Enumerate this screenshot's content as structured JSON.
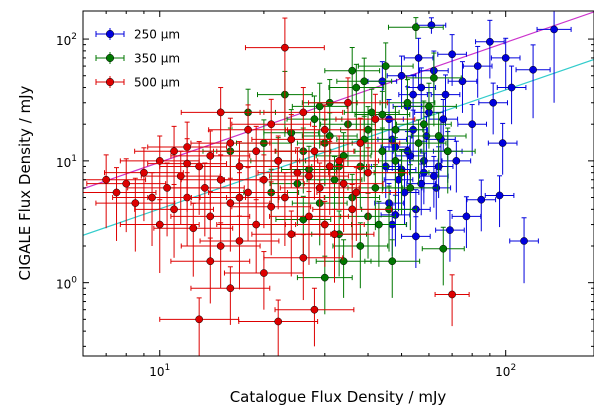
{
  "chart_data": {
    "type": "scatter",
    "title": "",
    "xlabel": "Catalogue Flux Density / mJy",
    "ylabel": "CIGALE Flux Density / mJy",
    "xscale": "log",
    "yscale": "log",
    "xlim": [
      6,
      180
    ],
    "ylim": [
      0.25,
      170
    ],
    "x_ticks": [
      {
        "value": 10,
        "base": "10",
        "exp": "1"
      },
      {
        "value": 100,
        "base": "10",
        "exp": "2"
      }
    ],
    "y_ticks": [
      {
        "value": 1,
        "base": "10",
        "exp": "0"
      },
      {
        "value": 10,
        "base": "10",
        "exp": "1"
      },
      {
        "value": 100,
        "base": "10",
        "exp": "2"
      }
    ],
    "legend_position": "upper-left",
    "grid": false,
    "reference_lines": [
      {
        "color": "#cc33cc",
        "points": [
          [
            6,
            5.9
          ],
          [
            180,
            167
          ]
        ]
      },
      {
        "color": "#33cccc",
        "points": [
          [
            6,
            2.45
          ],
          [
            180,
            68
          ]
        ]
      }
    ],
    "series": [
      {
        "name": "250 µm",
        "color": "#0000dd",
        "points": [
          [
            138,
            120,
            1.12,
            0.75
          ],
          [
            120,
            56,
            1.12,
            0.6
          ],
          [
            113,
            2.2,
            1.1,
            0.55
          ],
          [
            104,
            40,
            1.1,
            0.5
          ],
          [
            100,
            70,
            1.1,
            0.45
          ],
          [
            98,
            14,
            1.1,
            0.45
          ],
          [
            96,
            5.2,
            1.1,
            0.45
          ],
          [
            92,
            30,
            1.1,
            0.45
          ],
          [
            90,
            95,
            1.1,
            0.5
          ],
          [
            85,
            4.8,
            1.1,
            0.45
          ],
          [
            83,
            60,
            1.1,
            0.45
          ],
          [
            80,
            20,
            1.1,
            0.45
          ],
          [
            77,
            3.5,
            1.1,
            0.45
          ],
          [
            75,
            45,
            1.1,
            0.45
          ],
          [
            72,
            10,
            1.1,
            0.45
          ],
          [
            70,
            75,
            1.1,
            0.45
          ],
          [
            69,
            2.7,
            1.1,
            0.45
          ],
          [
            67,
            35,
            1.1,
            0.45
          ],
          [
            65,
            15,
            1.1,
            0.45
          ],
          [
            63,
            6,
            1.1,
            0.45
          ],
          [
            62,
            55,
            1.1,
            0.45
          ],
          [
            61,
            130,
            1.1,
            0.15
          ],
          [
            60,
            25,
            1.1,
            0.45
          ],
          [
            58,
            8,
            1.1,
            0.45
          ],
          [
            57,
            40,
            1.1,
            0.45
          ],
          [
            56,
            70,
            1.1,
            0.45
          ],
          [
            55,
            4,
            1.1,
            0.45
          ],
          [
            54,
            18,
            1.1,
            0.45
          ],
          [
            53,
            11,
            1.1,
            0.45
          ],
          [
            52,
            28,
            1.1,
            0.45
          ],
          [
            51,
            5.5,
            1.1,
            0.45
          ],
          [
            50,
            50,
            1.1,
            0.45
          ],
          [
            49,
            7,
            1.1,
            0.45
          ],
          [
            48,
            13,
            1.1,
            0.45
          ],
          [
            47,
            3,
            1.1,
            0.45
          ],
          [
            46,
            22,
            1.1,
            0.45
          ],
          [
            45,
            9,
            1.1,
            0.45
          ],
          [
            44,
            45,
            1.1,
            0.45
          ],
          [
            68,
            12,
            1.1,
            0.45
          ],
          [
            66,
            22,
            1.1,
            0.45
          ],
          [
            64,
            9,
            1.1,
            0.45
          ],
          [
            59,
            16,
            1.1,
            0.45
          ],
          [
            57,
            6.5,
            1.1,
            0.45
          ],
          [
            54,
            35,
            1.1,
            0.45
          ],
          [
            52,
            12,
            1.1,
            0.45
          ],
          [
            50,
            8.5,
            1.1,
            0.45
          ],
          [
            48,
            3.6,
            1.1,
            0.45
          ],
          [
            47,
            15,
            1.1,
            0.45
          ],
          [
            46,
            4.5,
            1.1,
            0.45
          ],
          [
            58,
            10,
            1.1,
            0.45
          ],
          [
            62,
            7.5,
            1.1,
            0.45
          ],
          [
            55,
            2.4,
            1.1,
            0.45
          ]
        ]
      },
      {
        "name": "350 µm",
        "color": "#007700",
        "points": [
          [
            62,
            48,
            1.2,
            0.6
          ],
          [
            55,
            125,
            1.2,
            0.2
          ],
          [
            52,
            30,
            1.2,
            0.55
          ],
          [
            50,
            8,
            1.2,
            0.55
          ],
          [
            48,
            18,
            1.2,
            0.55
          ],
          [
            46,
            4,
            1.2,
            0.55
          ],
          [
            45,
            60,
            1.2,
            0.55
          ],
          [
            44,
            12,
            1.2,
            0.55
          ],
          [
            42,
            6,
            1.2,
            0.55
          ],
          [
            41,
            25,
            1.2,
            0.55
          ],
          [
            40,
            3.5,
            1.2,
            0.55
          ],
          [
            39,
            15,
            1.2,
            0.55
          ],
          [
            38,
            9,
            1.2,
            0.55
          ],
          [
            37,
            40,
            1.2,
            0.55
          ],
          [
            36,
            5,
            1.2,
            0.55
          ],
          [
            35,
            20,
            1.2,
            0.55
          ],
          [
            34,
            11,
            1.2,
            0.55
          ],
          [
            33,
            2.5,
            1.2,
            0.55
          ],
          [
            32,
            7,
            1.2,
            0.55
          ],
          [
            31,
            30,
            1.2,
            0.55
          ],
          [
            30,
            14,
            1.2,
            0.55
          ],
          [
            29,
            4.5,
            1.2,
            0.55
          ],
          [
            28,
            22,
            1.2,
            0.55
          ],
          [
            27,
            8.5,
            1.2,
            0.55
          ],
          [
            26,
            12,
            1.2,
            0.55
          ],
          [
            25,
            6.5,
            1.2,
            0.55
          ],
          [
            24,
            17,
            1.2,
            0.55
          ],
          [
            23,
            35,
            1.2,
            0.55
          ],
          [
            22,
            10,
            1.2,
            0.55
          ],
          [
            21,
            5.5,
            1.2,
            0.55
          ],
          [
            20,
            14,
            1.2,
            0.55
          ],
          [
            18,
            25,
            1.2,
            0.55
          ],
          [
            16,
            12,
            1.2,
            0.55
          ],
          [
            66,
            1.9,
            1.15,
            0.5
          ],
          [
            68,
            12,
            1.2,
            0.55
          ],
          [
            58,
            20,
            1.2,
            0.55
          ],
          [
            53,
            6,
            1.2,
            0.55
          ],
          [
            47,
            1.5,
            1.2,
            0.5
          ],
          [
            43,
            3,
            1.2,
            0.55
          ],
          [
            38,
            2,
            1.2,
            0.55
          ],
          [
            34,
            1.5,
            1.2,
            0.5
          ],
          [
            30,
            1.1,
            1.2,
            0.5
          ],
          [
            36,
            55,
            1.2,
            0.55
          ],
          [
            40,
            18,
            1.2,
            0.55
          ],
          [
            33,
            9,
            1.2,
            0.55
          ],
          [
            29,
            28,
            1.2,
            0.55
          ],
          [
            26,
            3.3,
            1.2,
            0.55
          ],
          [
            44,
            24,
            1.2,
            0.55
          ],
          [
            48,
            10,
            1.2,
            0.55
          ],
          [
            56,
            14,
            1.2,
            0.55
          ],
          [
            60,
            28,
            1.2,
            0.55
          ],
          [
            64,
            16,
            1.2,
            0.55
          ],
          [
            39,
            45,
            1.2,
            0.55
          ],
          [
            31,
            16,
            1.2,
            0.55
          ]
        ]
      },
      {
        "name": "500 µm",
        "color": "#dd0000",
        "points": [
          [
            23,
            85,
            1.3,
            0.75
          ],
          [
            70,
            0.8,
            1.12,
            0.45
          ],
          [
            42,
            22,
            1.3,
            0.6
          ],
          [
            40,
            8,
            1.3,
            0.6
          ],
          [
            38,
            14,
            1.3,
            0.6
          ],
          [
            36,
            4,
            1.3,
            0.6
          ],
          [
            35,
            30,
            1.3,
            0.6
          ],
          [
            33,
            10,
            1.3,
            0.6
          ],
          [
            32,
            2.5,
            1.3,
            0.6
          ],
          [
            30,
            18,
            1.3,
            0.6
          ],
          [
            29,
            6,
            1.3,
            0.6
          ],
          [
            28,
            12,
            1.3,
            0.6
          ],
          [
            27,
            3.5,
            1.3,
            0.6
          ],
          [
            26,
            25,
            1.3,
            0.6
          ],
          [
            25,
            8,
            1.3,
            0.6
          ],
          [
            24,
            15,
            1.3,
            0.6
          ],
          [
            23,
            5,
            1.3,
            0.6
          ],
          [
            22,
            10,
            1.3,
            0.6
          ],
          [
            21,
            20,
            1.3,
            0.6
          ],
          [
            20,
            7,
            1.3,
            0.6
          ],
          [
            19,
            3,
            1.3,
            0.6
          ],
          [
            19,
            12,
            1.3,
            0.6
          ],
          [
            18,
            5.5,
            1.3,
            0.6
          ],
          [
            17,
            9,
            1.3,
            0.6
          ],
          [
            17,
            2.2,
            1.3,
            0.6
          ],
          [
            16,
            14,
            1.3,
            0.6
          ],
          [
            16,
            4.5,
            1.3,
            0.6
          ],
          [
            15,
            7,
            1.3,
            0.6
          ],
          [
            15,
            25,
            1.3,
            0.6
          ],
          [
            14,
            11,
            1.3,
            0.6
          ],
          [
            14,
            3.5,
            1.3,
            0.6
          ],
          [
            13.5,
            6,
            1.3,
            0.6
          ],
          [
            13,
            9,
            1.3,
            0.6
          ],
          [
            12.5,
            2.8,
            1.3,
            0.6
          ],
          [
            12,
            5,
            1.3,
            0.6
          ],
          [
            12,
            13,
            1.3,
            0.6
          ],
          [
            11.5,
            7.5,
            1.3,
            0.6
          ],
          [
            11,
            4,
            1.3,
            0.6
          ],
          [
            10.5,
            6,
            1.3,
            0.6
          ],
          [
            10,
            10,
            1.3,
            0.6
          ],
          [
            10,
            3,
            1.3,
            0.6
          ],
          [
            9.5,
            5,
            1.3,
            0.6
          ],
          [
            9,
            8,
            1.3,
            0.6
          ],
          [
            8.5,
            4.5,
            1.3,
            0.6
          ],
          [
            8,
            6.5,
            1.3,
            0.6
          ],
          [
            7.5,
            5.5,
            1.3,
            0.6
          ],
          [
            7,
            7,
            1.3,
            0.6
          ],
          [
            13,
            0.5,
            1.3,
            0.5
          ],
          [
            22,
            0.48,
            1.3,
            0.5
          ],
          [
            20,
            1.2,
            1.3,
            0.5
          ],
          [
            16,
            0.9,
            1.3,
            0.5
          ],
          [
            14,
            1.5,
            1.3,
            0.55
          ],
          [
            15,
            2,
            1.3,
            0.55
          ],
          [
            28,
            0.6,
            1.3,
            0.5
          ],
          [
            26,
            1.6,
            1.3,
            0.55
          ],
          [
            30,
            3,
            1.3,
            0.55
          ],
          [
            34,
            6.5,
            1.3,
            0.6
          ],
          [
            31,
            9,
            1.3,
            0.6
          ],
          [
            24,
            2.5,
            1.3,
            0.55
          ],
          [
            18,
            18,
            1.3,
            0.6
          ],
          [
            12,
            9.5,
            1.3,
            0.6
          ],
          [
            11,
            12,
            1.3,
            0.6
          ],
          [
            17,
            5,
            1.3,
            0.6
          ],
          [
            21,
            4.2,
            1.3,
            0.6
          ],
          [
            37,
            5.5,
            1.3,
            0.6
          ],
          [
            27,
            7.5,
            1.3,
            0.6
          ]
        ]
      }
    ]
  }
}
